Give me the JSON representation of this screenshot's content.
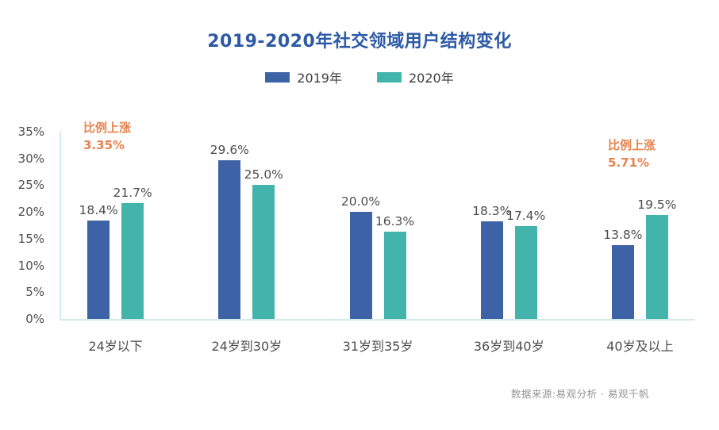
{
  "title": "2019-2020年社交领域用户结构变化",
  "title_color": "#2d59a5",
  "legend": [
    {
      "label": "2019年",
      "color": "#3d63a6"
    },
    {
      "label": "2020年",
      "color": "#43b4ab"
    }
  ],
  "annotations": [
    {
      "line1": "比例上涨",
      "line2": "3.35%"
    },
    {
      "line1": "比例上涨",
      "line2": "5.71%"
    }
  ],
  "annotation_color": "#e5834e",
  "source": "数据来源:易观分析 · 易观千帆",
  "chart_data": {
    "type": "bar",
    "title": "2019-2020年社交领域用户结构变化",
    "categories": [
      "24岁以下",
      "24岁到30岁",
      "31岁到35岁",
      "36岁到40岁",
      "40岁及以上"
    ],
    "series": [
      {
        "name": "2019年",
        "color": "#3d63a6",
        "values": [
          18.4,
          29.6,
          20.0,
          18.3,
          13.8
        ]
      },
      {
        "name": "2020年",
        "color": "#43b4ab",
        "values": [
          21.7,
          25.0,
          16.3,
          17.4,
          19.5
        ]
      }
    ],
    "xlabel": "",
    "ylabel": "",
    "ylim": [
      0,
      35
    ],
    "ytick_step": 5,
    "ytick_suffix": "%",
    "grid": false,
    "legend_position": "top",
    "annotations": [
      {
        "text": "比例上涨 3.35%",
        "category": "24岁以下"
      },
      {
        "text": "比例上涨 5.71%",
        "category": "40岁及以上"
      }
    ]
  }
}
